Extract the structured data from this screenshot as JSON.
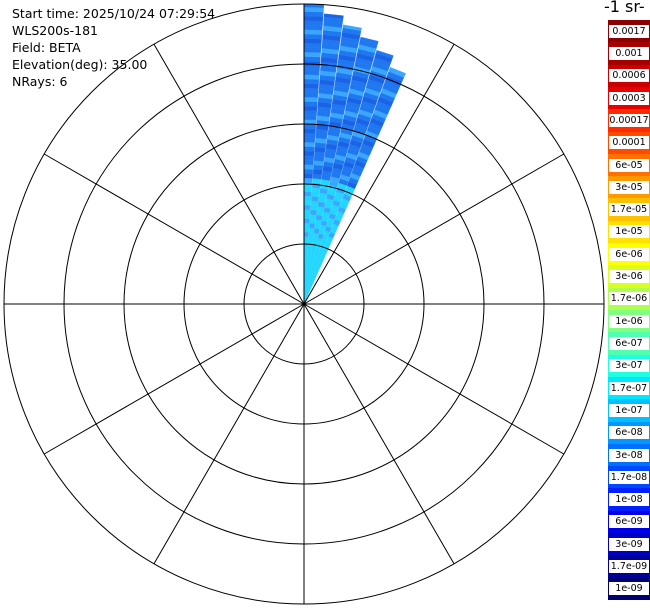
{
  "info": {
    "start_time": "Start time: 2025/10/24 07:29:54",
    "instrument": "WLS200s-181",
    "field": "Field: BETA",
    "elevation": "Elevation(deg): 35.00",
    "nrays": "NRays: 6"
  },
  "colorbar": {
    "title": "-1 sr-",
    "ticks": [
      "0.0017",
      "0.001",
      "0.0006",
      "0.0003",
      "0.00017",
      "0.0001",
      "6e-05",
      "3e-05",
      "1.7e-05",
      "1e-05",
      "6e-06",
      "3e-06",
      "1.7e-06",
      "1e-06",
      "6e-07",
      "3e-07",
      "1.7e-07",
      "1e-07",
      "6e-08",
      "3e-08",
      "1.7e-08",
      "1e-08",
      "6e-09",
      "3e-09",
      "1.7e-09",
      "1e-09"
    ],
    "colors": [
      "#8b0000",
      "#a50000",
      "#c80000",
      "#e60000",
      "#ff2a00",
      "#ff4a00",
      "#ff7000",
      "#ff9900",
      "#ffc000",
      "#ffe000",
      "#ffff00",
      "#d8ff20",
      "#b0ff50",
      "#80ff80",
      "#50ffb0",
      "#20ffe0",
      "#00e8ff",
      "#00c0ff",
      "#0098ff",
      "#0070ff",
      "#0048ff",
      "#0020ff",
      "#0000e8",
      "#0000c0",
      "#000098",
      "#000070"
    ]
  },
  "chart_data": {
    "type": "polar_ppi",
    "title": "",
    "field": "BETA",
    "elevation_deg": 35.0,
    "nrays": 6,
    "range_rings": 5,
    "radial_lines_every_deg": 30,
    "rays_azimuth_deg": [
      0,
      4,
      8,
      12,
      16,
      20
    ],
    "ray_visible_extent_fraction": [
      1.0,
      0.97,
      0.94,
      0.91,
      0.88,
      0.84
    ],
    "colors": {
      "near_range": "#22d6ff",
      "mid_range": "#3aa6ff",
      "far_range": "#1f78f0",
      "far_range_alt": "#1a62e6"
    }
  }
}
